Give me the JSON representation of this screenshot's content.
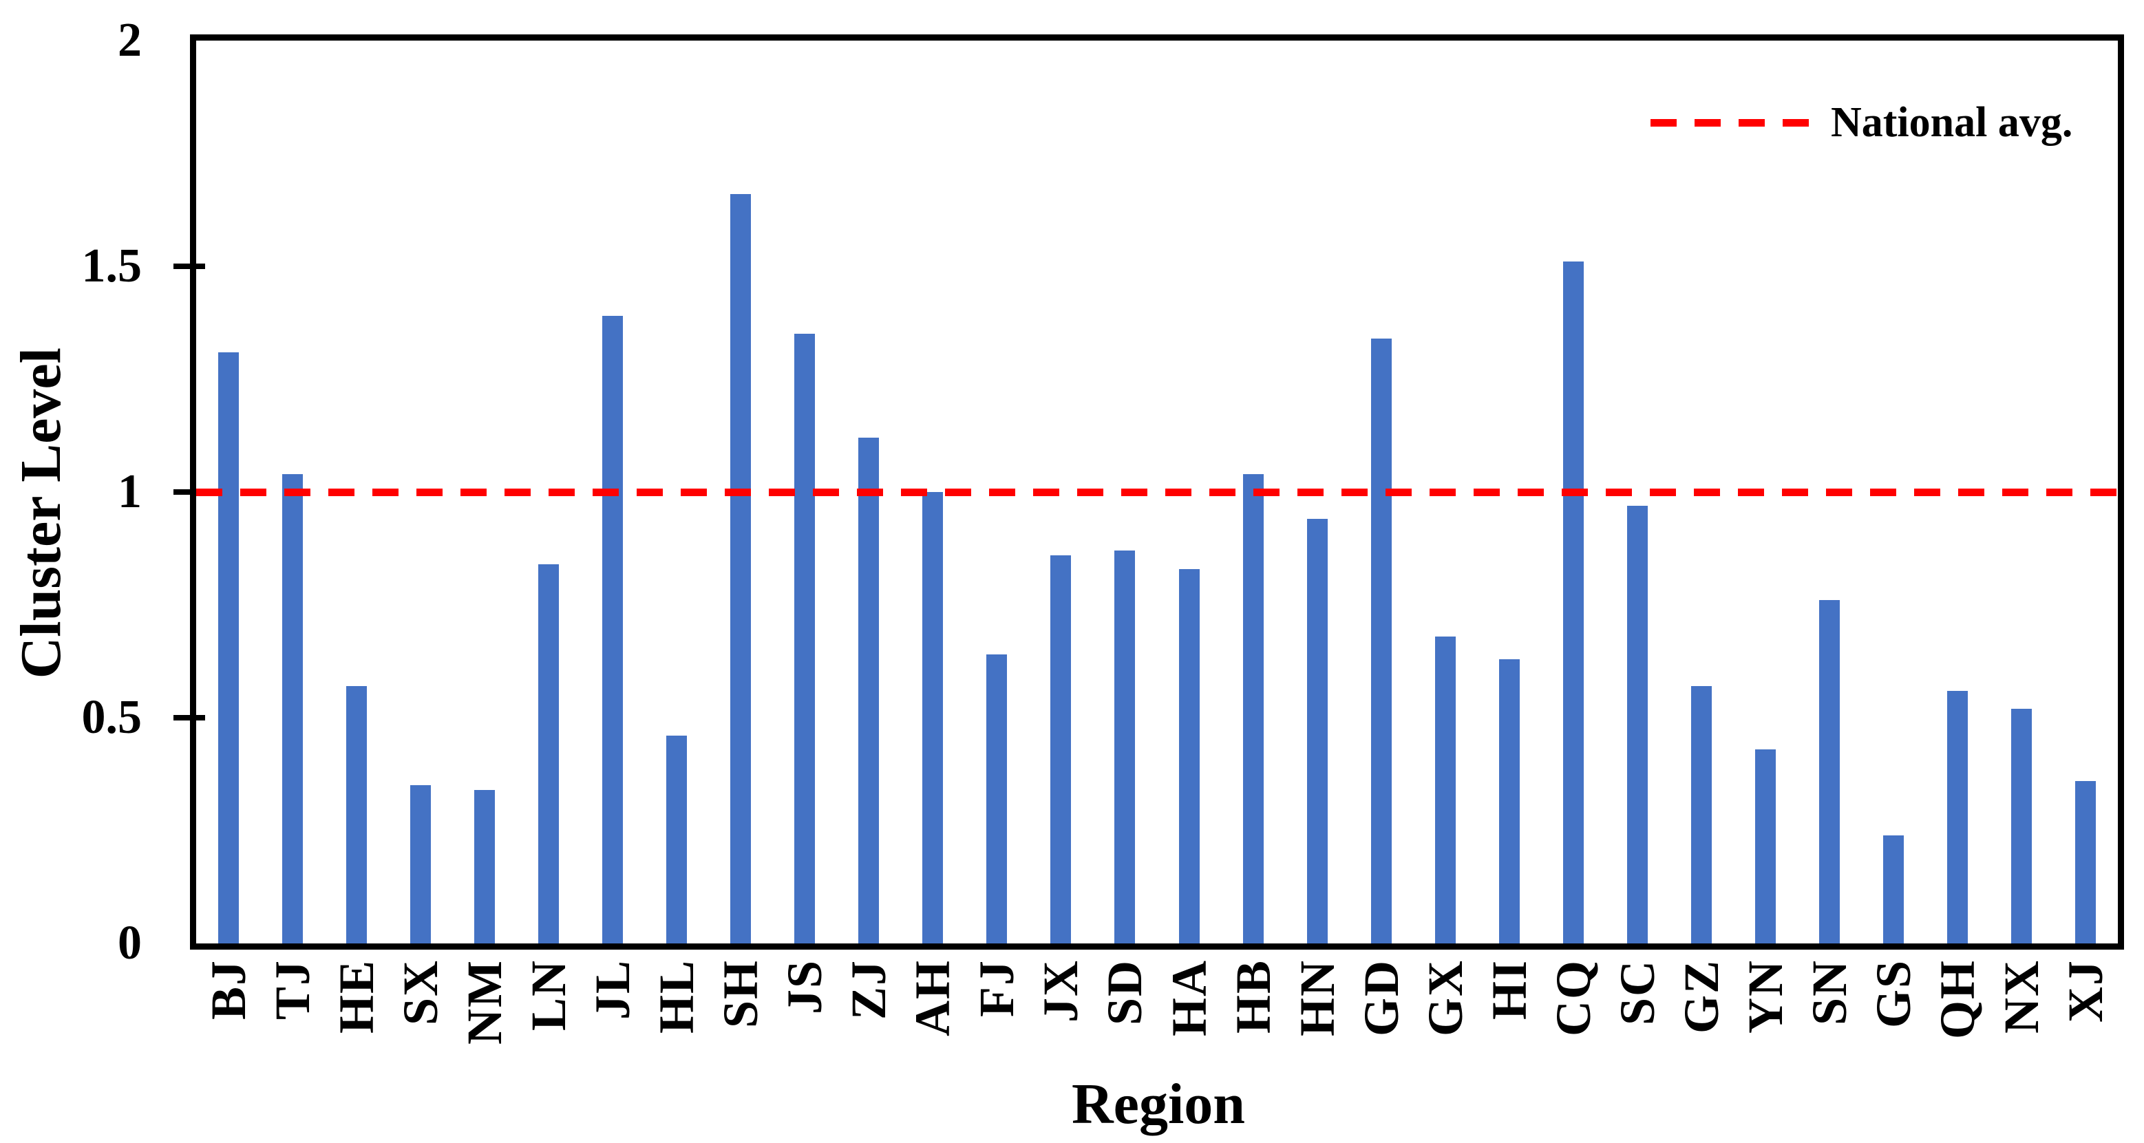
{
  "chart_data": {
    "type": "bar",
    "title": "",
    "xlabel": "Region",
    "ylabel": "Cluster Level",
    "ylim": [
      0,
      2
    ],
    "yticks": [
      0,
      0.5,
      1,
      1.5,
      2
    ],
    "ytick_labels": [
      "0",
      "0.5",
      "1",
      "1.5",
      "2"
    ],
    "categories": [
      "BJ",
      "TJ",
      "HE",
      "SX",
      "NM",
      "LN",
      "JL",
      "HL",
      "SH",
      "JS",
      "ZJ",
      "AH",
      "FJ",
      "JX",
      "SD",
      "HA",
      "HB",
      "HN",
      "GD",
      "GX",
      "HI",
      "CQ",
      "SC",
      "GZ",
      "YN",
      "SN",
      "GS",
      "QH",
      "NX",
      "XJ"
    ],
    "values": [
      1.31,
      1.04,
      0.57,
      0.35,
      0.34,
      0.84,
      1.39,
      0.46,
      1.66,
      1.35,
      1.12,
      1.0,
      0.64,
      0.86,
      0.87,
      0.83,
      1.04,
      0.94,
      1.34,
      0.68,
      0.63,
      1.51,
      0.97,
      0.57,
      0.43,
      0.76,
      0.24,
      0.56,
      0.52,
      0.36
    ],
    "bar_color": "#4472C4",
    "axis_color": "#000000",
    "background_color": "#FFFFFF",
    "grid": false,
    "legend_position": "top-right",
    "reference_line": {
      "value": 1.0,
      "label": "National avg.",
      "color": "#FF0000",
      "style": "dashed"
    }
  }
}
